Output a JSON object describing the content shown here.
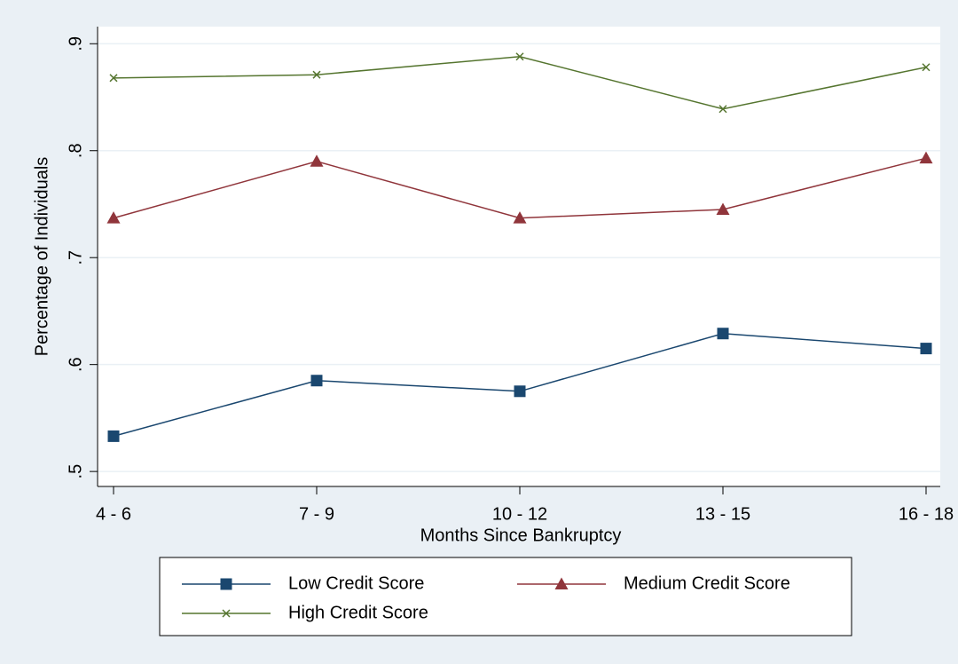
{
  "chart_data": {
    "type": "line",
    "x_label": "Months Since Bankruptcy",
    "y_label": "Percentage of Individuals",
    "categories": [
      "4 - 6",
      "7 - 9",
      "10 - 12",
      "13 - 15",
      "16 - 18"
    ],
    "series": [
      {
        "name": "Low Credit Score",
        "color": "#1a476f",
        "marker": "square",
        "values": [
          0.533,
          0.585,
          0.575,
          0.629,
          0.615
        ]
      },
      {
        "name": "Medium Credit Score",
        "color": "#90353b",
        "marker": "triangle",
        "values": [
          0.737,
          0.79,
          0.737,
          0.745,
          0.793
        ]
      },
      {
        "name": "High Credit Score",
        "color": "#55752f",
        "marker": "x",
        "values": [
          0.868,
          0.871,
          0.888,
          0.839,
          0.878
        ]
      }
    ],
    "ylim": [
      0.486,
      0.916
    ],
    "yticks": [
      {
        "value": 0.5,
        "label": ".5"
      },
      {
        "value": 0.6,
        "label": ".6"
      },
      {
        "value": 0.7,
        "label": ".7"
      },
      {
        "value": 0.8,
        "label": ".8"
      },
      {
        "value": 0.9,
        "label": ".9"
      }
    ],
    "grid": true,
    "legend_position": "bottom"
  }
}
